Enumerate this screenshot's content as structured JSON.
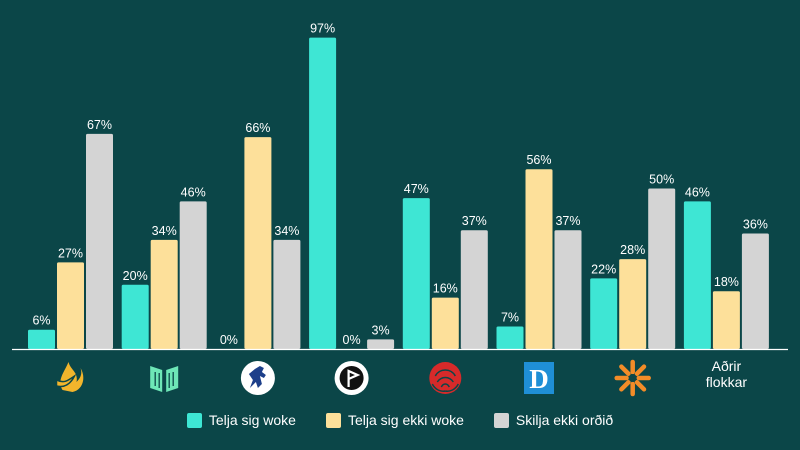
{
  "chart_data": {
    "type": "bar",
    "categories": [
      "party-1",
      "party-2",
      "party-3",
      "party-4",
      "party-5",
      "party-6",
      "party-7",
      "Aðrir flokkar"
    ],
    "category_icons": [
      "flame-dove-icon",
      "book-icon",
      "horse-icon",
      "pirate-flag-icon",
      "rose-icon",
      "d-logo-icon",
      "sun-burst-icon",
      null
    ],
    "category_text": [
      "",
      "",
      "",
      "",
      "",
      "",
      "",
      "Aðrir flokkar"
    ],
    "series": [
      {
        "name": "Telja sig woke",
        "color": "#3ee6d4",
        "values": [
          6,
          20,
          0,
          97,
          47,
          7,
          22,
          46
        ]
      },
      {
        "name": "Telja sig ekki woke",
        "color": "#fde09a",
        "values": [
          27,
          34,
          66,
          0,
          16,
          56,
          28,
          18
        ]
      },
      {
        "name": "Skilja ekki orðið",
        "color": "#d4d4d4",
        "values": [
          67,
          46,
          34,
          3,
          37,
          37,
          50,
          36
        ]
      }
    ],
    "value_suffix": "%",
    "ylim": [
      0,
      100
    ],
    "grid": false,
    "legend_position": "bottom"
  },
  "colors": {
    "background": "#0b4648",
    "axis": "#ffffff",
    "text": "#ffffff"
  }
}
